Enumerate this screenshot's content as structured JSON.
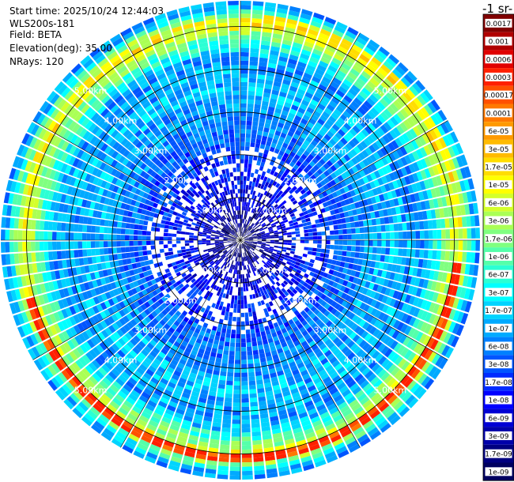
{
  "header": {
    "start_time": "Start time: 2025/10/24 12:44:03",
    "instrument": "WLS200s-181",
    "field": "Field: BETA",
    "elevation": "Elevation(deg): 35.00",
    "nrays": "NRays: 120"
  },
  "colorbar": {
    "unit_fragment": "-1 sr-",
    "ticks": [
      "0.0017",
      "0.001",
      "0.0006",
      "0.0003",
      "0.00017",
      "0.0001",
      "6e-05",
      "3e-05",
      "1.7e-05",
      "1e-05",
      "6e-06",
      "3e-06",
      "1.7e-06",
      "1e-06",
      "6e-07",
      "3e-07",
      "1.7e-07",
      "1e-07",
      "6e-08",
      "3e-08",
      "1.7e-08",
      "1e-08",
      "6e-09",
      "3e-09",
      "1.7e-09",
      "1e-09"
    ],
    "colors": [
      "#800000",
      "#b00000",
      "#e00000",
      "#ff2000",
      "#ff5000",
      "#ff7800",
      "#ff9a00",
      "#ffbb00",
      "#ffdd00",
      "#ffff00",
      "#d4ff2b",
      "#aaff55",
      "#80ff80",
      "#55ffaa",
      "#2bffd4",
      "#00ffff",
      "#00d4ff",
      "#00aaff",
      "#0080ff",
      "#0055ff",
      "#002bff",
      "#0000ff",
      "#0000d4",
      "#0000aa",
      "#000080",
      "#000060"
    ]
  },
  "chart_data": {
    "type": "heatmap",
    "projection": "polar-ppi",
    "field": "BETA",
    "elevation_deg": 35.0,
    "nrays": 120,
    "range_km_max": 5.6,
    "range_rings_km": [
      1,
      2,
      3,
      4,
      5
    ],
    "range_ring_labels": [
      "1.00km",
      "2.00km",
      "3.00km",
      "4.00km",
      "5.00km"
    ],
    "label_angles_deg": [
      45,
      135,
      225,
      315
    ],
    "colorscale": "jet-log",
    "value_range": [
      1e-09,
      0.0017
    ],
    "radial_profile_km": [
      {
        "range_km": 0.0,
        "value": 1e-09
      },
      {
        "range_km": 1.0,
        "value": 1e-08
      },
      {
        "range_km": 2.0,
        "value": 3e-08
      },
      {
        "range_km": 3.0,
        "value": 1e-07
      },
      {
        "range_km": 3.6,
        "value": 1.7e-07
      },
      {
        "range_km": 4.3,
        "value": 1e-07
      },
      {
        "range_km": 5.1,
        "value": 1.7e-05
      },
      {
        "range_km": 5.5,
        "value": 1e-07
      }
    ],
    "high_arcs": [
      {
        "from_deg": 95,
        "to_deg": 255,
        "range_km": 5.1,
        "value": 0.0003
      },
      {
        "from_deg": 5,
        "to_deg": 75,
        "range_km": 5.2,
        "value": 1.7e-05
      },
      {
        "from_deg": 295,
        "to_deg": 335,
        "range_km": 5.2,
        "value": 1.7e-06
      }
    ]
  }
}
